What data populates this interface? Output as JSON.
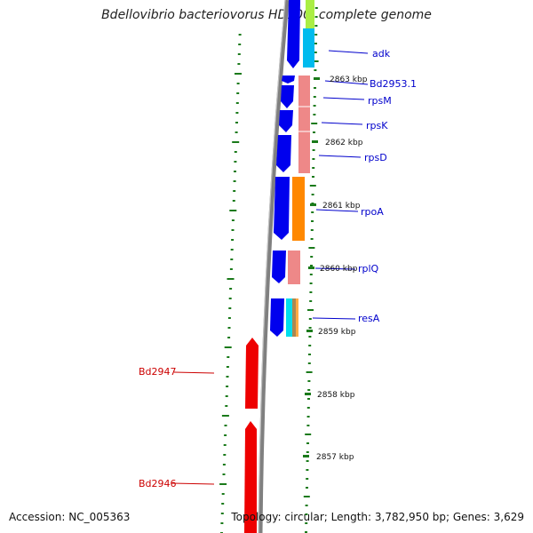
{
  "title": "Bdellovibrio bacteriovorus HD100, complete genome",
  "footer": {
    "accession": "Accession: NC_005363",
    "topology": "Topology: circular; Length: 3,782,950 bp; Genes: 3,629"
  },
  "genes": [
    {
      "name": "adk",
      "color": "#0000cc"
    },
    {
      "name": "Bd2953.1",
      "color": "#0000cc"
    },
    {
      "name": "rpsM",
      "color": "#0000cc"
    },
    {
      "name": "rpsK",
      "color": "#0000cc"
    },
    {
      "name": "rpsD",
      "color": "#0000cc"
    },
    {
      "name": "rpoA",
      "color": "#0000cc"
    },
    {
      "name": "rplQ",
      "color": "#0000cc"
    },
    {
      "name": "resA",
      "color": "#0000cc"
    },
    {
      "name": "Bd2947",
      "color": "#cc0000"
    },
    {
      "name": "Bd2946",
      "color": "#cc0000"
    }
  ],
  "ticks": [
    "2863 kbp",
    "2862 kbp",
    "2861 kbp",
    "2860 kbp",
    "2859 kbp",
    "2858 kbp",
    "2857 kbp"
  ],
  "colors": {
    "forward_cds": "#0000ee",
    "reverse_cds": "#ee0000",
    "backbone": "#808080",
    "gc_dots": "#1a7a1a",
    "cog_red": "#ee8888",
    "cog_orange": "#ff8800",
    "cog_cyan": "#00bbee",
    "cog_green": "#aaee44"
  }
}
